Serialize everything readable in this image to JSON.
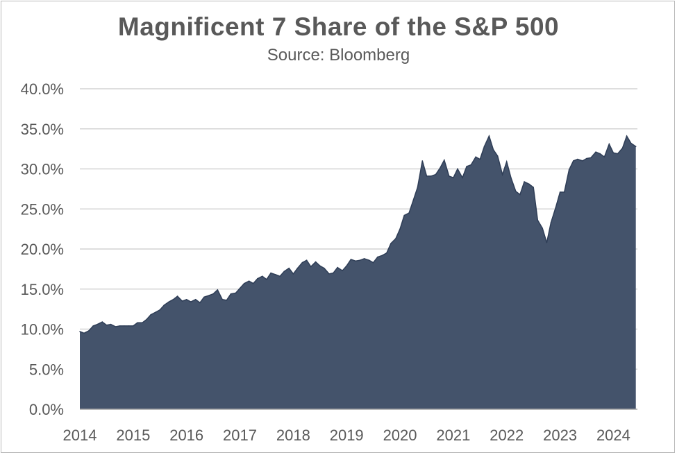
{
  "chart_data": {
    "type": "area",
    "title": "Magnificent 7 Share of the S&P 500",
    "subtitle": "Source: Bloomberg",
    "xlabel": "",
    "ylabel": "",
    "xlim": [
      2014,
      2024.45
    ],
    "ylim": [
      0,
      40
    ],
    "y_ticks": [
      "0.0%",
      "5.0%",
      "10.0%",
      "15.0%",
      "20.0%",
      "25.0%",
      "30.0%",
      "35.0%",
      "40.0%"
    ],
    "y_tick_values": [
      0,
      5,
      10,
      15,
      20,
      25,
      30,
      35,
      40
    ],
    "x_ticks": [
      "2014",
      "2015",
      "2016",
      "2017",
      "2018",
      "2019",
      "2020",
      "2021",
      "2022",
      "2023",
      "2024"
    ],
    "x_tick_values": [
      2014,
      2015,
      2016,
      2017,
      2018,
      2019,
      2020,
      2021,
      2022,
      2023,
      2024
    ],
    "grid": true,
    "legend": "none",
    "fill_color": "#44536b",
    "line_color": "#2f3e57",
    "series": [
      {
        "points": [
          [
            2014.0,
            9.7
          ],
          [
            2014.08,
            9.5
          ],
          [
            2014.17,
            9.8
          ],
          [
            2014.25,
            10.4
          ],
          [
            2014.33,
            10.6
          ],
          [
            2014.42,
            10.9
          ],
          [
            2014.5,
            10.5
          ],
          [
            2014.58,
            10.6
          ],
          [
            2014.67,
            10.3
          ],
          [
            2014.75,
            10.4
          ],
          [
            2014.83,
            10.4
          ],
          [
            2014.92,
            10.4
          ],
          [
            2015.0,
            10.4
          ],
          [
            2015.08,
            10.8
          ],
          [
            2015.17,
            10.8
          ],
          [
            2015.25,
            11.2
          ],
          [
            2015.33,
            11.8
          ],
          [
            2015.42,
            12.1
          ],
          [
            2015.5,
            12.4
          ],
          [
            2015.58,
            13.0
          ],
          [
            2015.67,
            13.4
          ],
          [
            2015.75,
            13.7
          ],
          [
            2015.83,
            14.1
          ],
          [
            2015.92,
            13.5
          ],
          [
            2016.0,
            13.7
          ],
          [
            2016.08,
            13.4
          ],
          [
            2016.17,
            13.7
          ],
          [
            2016.25,
            13.3
          ],
          [
            2016.33,
            14.0
          ],
          [
            2016.42,
            14.2
          ],
          [
            2016.5,
            14.4
          ],
          [
            2016.58,
            14.9
          ],
          [
            2016.67,
            13.7
          ],
          [
            2016.75,
            13.6
          ],
          [
            2016.83,
            14.4
          ],
          [
            2016.92,
            14.5
          ],
          [
            2017.0,
            15.1
          ],
          [
            2017.08,
            15.7
          ],
          [
            2017.17,
            16.0
          ],
          [
            2017.25,
            15.7
          ],
          [
            2017.33,
            16.3
          ],
          [
            2017.42,
            16.6
          ],
          [
            2017.5,
            16.2
          ],
          [
            2017.58,
            17.0
          ],
          [
            2017.67,
            16.8
          ],
          [
            2017.75,
            16.6
          ],
          [
            2017.83,
            17.2
          ],
          [
            2017.92,
            17.6
          ],
          [
            2018.0,
            16.9
          ],
          [
            2018.08,
            17.6
          ],
          [
            2018.17,
            18.3
          ],
          [
            2018.25,
            18.6
          ],
          [
            2018.33,
            17.8
          ],
          [
            2018.42,
            18.4
          ],
          [
            2018.5,
            17.9
          ],
          [
            2018.58,
            17.6
          ],
          [
            2018.67,
            16.9
          ],
          [
            2018.75,
            17.0
          ],
          [
            2018.83,
            17.7
          ],
          [
            2018.92,
            17.3
          ],
          [
            2019.0,
            17.9
          ],
          [
            2019.08,
            18.7
          ],
          [
            2019.17,
            18.5
          ],
          [
            2019.25,
            18.6
          ],
          [
            2019.33,
            18.8
          ],
          [
            2019.42,
            18.6
          ],
          [
            2019.5,
            18.3
          ],
          [
            2019.58,
            19.0
          ],
          [
            2019.67,
            19.2
          ],
          [
            2019.75,
            19.5
          ],
          [
            2019.83,
            20.7
          ],
          [
            2019.92,
            21.3
          ],
          [
            2020.0,
            22.5
          ],
          [
            2020.08,
            24.2
          ],
          [
            2020.17,
            24.5
          ],
          [
            2020.25,
            26.1
          ],
          [
            2020.33,
            27.7
          ],
          [
            2020.42,
            31.0
          ],
          [
            2020.5,
            29.1
          ],
          [
            2020.58,
            29.1
          ],
          [
            2020.67,
            29.3
          ],
          [
            2020.75,
            30.1
          ],
          [
            2020.83,
            31.1
          ],
          [
            2020.92,
            29.1
          ],
          [
            2021.0,
            28.9
          ],
          [
            2021.08,
            30.0
          ],
          [
            2021.17,
            28.9
          ],
          [
            2021.25,
            30.3
          ],
          [
            2021.33,
            30.5
          ],
          [
            2021.42,
            31.5
          ],
          [
            2021.5,
            31.2
          ],
          [
            2021.58,
            32.8
          ],
          [
            2021.67,
            34.1
          ],
          [
            2021.75,
            32.4
          ],
          [
            2021.83,
            31.6
          ],
          [
            2021.92,
            29.3
          ],
          [
            2022.0,
            30.9
          ],
          [
            2022.08,
            28.9
          ],
          [
            2022.17,
            27.2
          ],
          [
            2022.25,
            26.8
          ],
          [
            2022.33,
            28.4
          ],
          [
            2022.42,
            28.1
          ],
          [
            2022.5,
            27.7
          ],
          [
            2022.58,
            23.6
          ],
          [
            2022.67,
            22.6
          ],
          [
            2022.75,
            20.8
          ],
          [
            2022.83,
            23.3
          ],
          [
            2022.92,
            25.2
          ],
          [
            2023.0,
            27.1
          ],
          [
            2023.08,
            27.1
          ],
          [
            2023.17,
            29.9
          ],
          [
            2023.25,
            31.0
          ],
          [
            2023.33,
            31.2
          ],
          [
            2023.42,
            31.0
          ],
          [
            2023.5,
            31.3
          ],
          [
            2023.58,
            31.4
          ],
          [
            2023.67,
            32.1
          ],
          [
            2023.75,
            31.9
          ],
          [
            2023.83,
            31.5
          ],
          [
            2023.92,
            33.1
          ],
          [
            2024.0,
            32.0
          ],
          [
            2024.08,
            31.9
          ],
          [
            2024.17,
            32.6
          ],
          [
            2024.25,
            34.1
          ],
          [
            2024.33,
            33.2
          ],
          [
            2024.42,
            32.8
          ]
        ]
      }
    ]
  }
}
